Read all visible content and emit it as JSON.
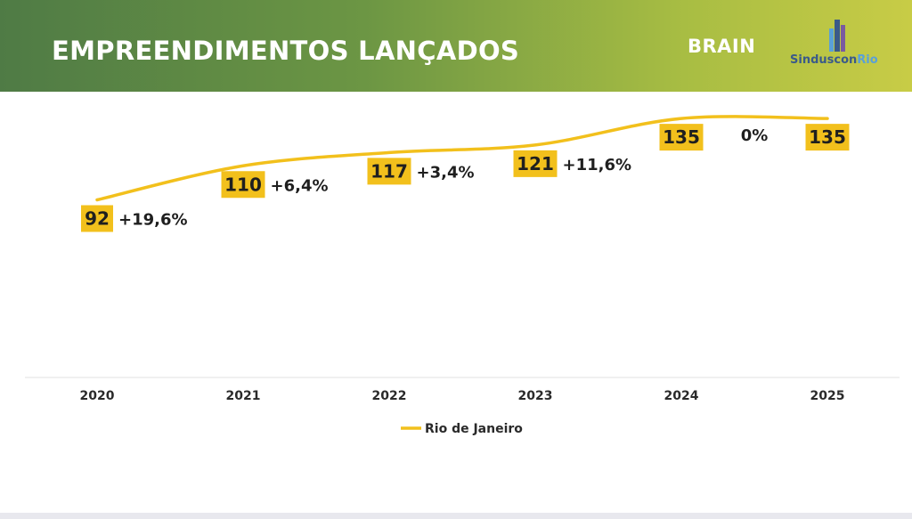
{
  "header": {
    "title": "EMPREENDIMENTOS LANÇADOS",
    "brand_logo": "BRAIN",
    "partner_logo_part1": "Sinduscon",
    "partner_logo_part2": "Rio",
    "partner_mark_icon": "building-bars-icon"
  },
  "colors": {
    "line": "#f2c01c",
    "label_bg": "#f2c01c",
    "banner_start": "#4f7b45",
    "banner_end": "#c8cc46"
  },
  "chart_data": {
    "type": "line",
    "title": "EMPREENDIMENTOS LANÇADOS",
    "categories": [
      "2020",
      "2021",
      "2022",
      "2023",
      "2024",
      "2025"
    ],
    "series": [
      {
        "name": "Rio de Janeiro",
        "values": [
          92,
          110,
          117,
          121,
          135,
          135
        ]
      }
    ],
    "growth_labels": [
      "+19,6%",
      "+6,4%",
      "+3,4%",
      "+11,6%",
      "0%"
    ],
    "xlabel": "",
    "ylabel": "",
    "ylim": [
      0,
      160
    ],
    "grid": false,
    "legend": "bottom-center"
  }
}
